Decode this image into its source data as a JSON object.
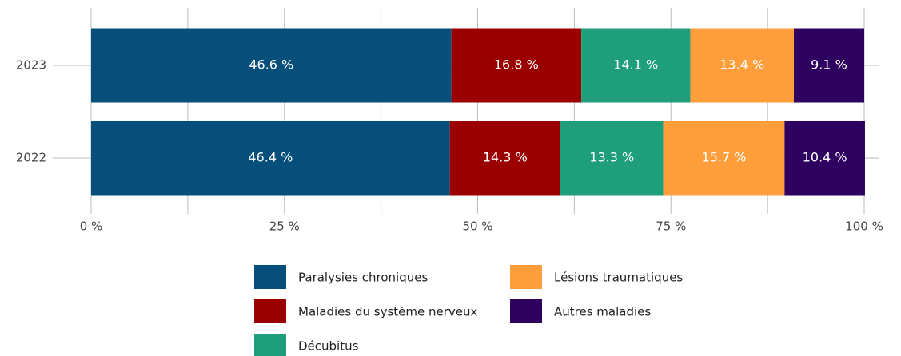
{
  "chart_data": {
    "type": "stacked_barh",
    "categories": [
      "2023",
      "2022"
    ],
    "series": [
      {
        "name": "Paralysies chroniques",
        "color": "#064f7a",
        "values": [
          46.6,
          46.4
        ],
        "value_labels": [
          "46.6 %",
          "46.4 %"
        ]
      },
      {
        "name": "Maladies du système nerveux",
        "color": "#9b0000",
        "values": [
          16.8,
          14.3
        ],
        "value_labels": [
          "16.8 %",
          "14.3 %"
        ]
      },
      {
        "name": "Décubitus",
        "color": "#1e9e7a",
        "values": [
          14.1,
          13.3
        ],
        "value_labels": [
          "14.1 %",
          "13.3 %"
        ]
      },
      {
        "name": "Lésions traumatiques",
        "color": "#ff9e3a",
        "values": [
          13.4,
          15.7
        ],
        "value_labels": [
          "13.4 %",
          "15.7 %"
        ]
      },
      {
        "name": "Autres maladies",
        "color": "#2e0060",
        "values": [
          9.1,
          10.4
        ],
        "value_labels": [
          "9.1 %",
          "10.4 %"
        ]
      }
    ],
    "xlim": [
      0,
      100
    ],
    "xticks": [
      {
        "value": 0,
        "label": "0 %"
      },
      {
        "value": 25,
        "label": "25 %"
      },
      {
        "value": 50,
        "label": "50 %"
      },
      {
        "value": 75,
        "label": "75 %"
      },
      {
        "value": 100,
        "label": "100 %"
      }
    ],
    "minor_xticks": [
      12.5,
      37.5,
      62.5,
      87.5
    ],
    "grid": true,
    "legend": "bottom"
  }
}
